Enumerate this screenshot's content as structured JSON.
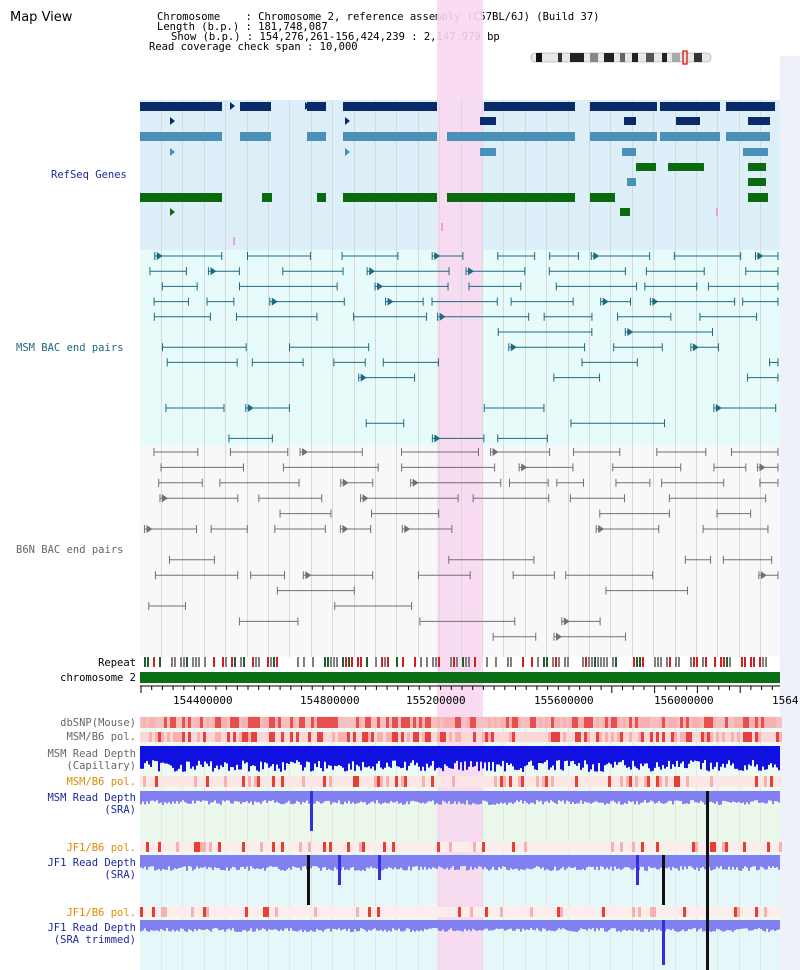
{
  "page": {
    "title": "Map View"
  },
  "header": {
    "chromosome_line": "Chromosome    : Chromosome 2, reference assembly (C57BL/6J) (Build 37)",
    "length_line": "Length (b.p.) : 181,748,087",
    "show_line": "Show (b.p.) : 154,276,261-156,424,239 : 2,147,979 bp",
    "coverage_line": "Read coverage check span : 10,000"
  },
  "tracks": {
    "refseq": "RefSeq Genes",
    "msm_bac": "MSM BAC end pairs",
    "b6n_bac": "B6N BAC end pairs",
    "repeat": "Repeat",
    "chromosome": "chromosome 2",
    "dbsnp": "dbSNP(Mouse)",
    "msm_pol_1": "MSM/B6 pol.",
    "msm_depth_cap_1": "MSM Read Depth",
    "msm_depth_cap_2": "(Capillary)",
    "msm_pol_2": "MSM/B6 pol.",
    "msm_depth_sra_1": "MSM Read Depth",
    "msm_depth_sra_2": "(SRA)",
    "jf1_pol_1": "JF1/B6 pol.",
    "jf1_depth_1": "JF1 Read Depth",
    "jf1_depth_2": "(SRA)",
    "jf1_pol_2": "JF1/B6 pol.",
    "jf1_trim_1": "JF1 Read Depth",
    "jf1_trim_2": "(SRA trimmed)"
  },
  "axis": {
    "labels": [
      "154400000",
      "154800000",
      "155200000",
      "155600000",
      "156000000",
      "1564"
    ]
  },
  "colors": {
    "highlight": "#f8d8f0",
    "refseq_bg": "#ddf0fa",
    "msm_bg": "#e8fbfb",
    "b6n_bg": "#f8f8fb",
    "gene_navy": "#0a2a6a",
    "gene_blue": "#4a90b8",
    "gene_green": "#0a6a10",
    "msm_line": "#1c6a80",
    "b6n_line": "#707070",
    "depth_blue": "#1010e0",
    "depth_violet": "#8080f0"
  }
}
